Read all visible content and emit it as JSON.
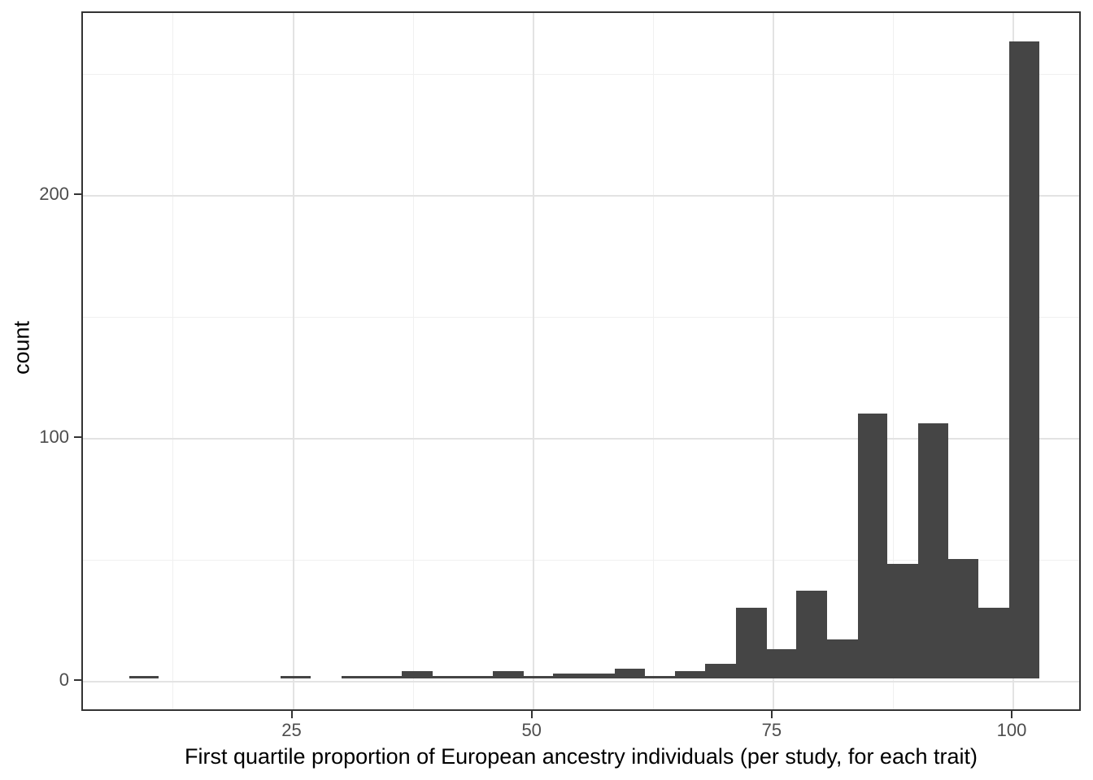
{
  "figure": {
    "background": "#ffffff"
  },
  "colors": {
    "bar_fill": "#454545",
    "major_grid": "#e3e3e3",
    "minor_grid": "#f0f0f0",
    "panel_border": "#333333",
    "tick_mark": "#333333",
    "tick_label": "#4d4d4d",
    "axis_title": "#000000"
  },
  "chart_data": {
    "type": "bar",
    "subtype": "histogram",
    "title": "",
    "xlabel": "First quartile proportion of European ancestry individuals (per study, for each trait)",
    "ylabel": "count",
    "x_ticks": [
      25,
      50,
      75,
      100
    ],
    "y_ticks": [
      0,
      100,
      200
    ],
    "x_minor_gridlines": [
      12.5,
      37.5,
      62.5,
      87.5
    ],
    "y_minor_gridlines": [
      50,
      150,
      250
    ],
    "xlim": [
      3.1,
      107.2
    ],
    "ylim": [
      -12.8,
      275.1
    ],
    "grid": true,
    "legend_position": "none",
    "bins": [
      {
        "start": 7.9,
        "end": 11.0,
        "count": 1
      },
      {
        "start": 11.0,
        "end": 14.2,
        "count": 0
      },
      {
        "start": 14.2,
        "end": 17.3,
        "count": 0
      },
      {
        "start": 17.3,
        "end": 20.5,
        "count": 0
      },
      {
        "start": 20.5,
        "end": 23.7,
        "count": 0
      },
      {
        "start": 23.7,
        "end": 26.8,
        "count": 1
      },
      {
        "start": 26.8,
        "end": 30.0,
        "count": 0
      },
      {
        "start": 30.0,
        "end": 33.2,
        "count": 1
      },
      {
        "start": 33.2,
        "end": 36.3,
        "count": 1
      },
      {
        "start": 36.3,
        "end": 39.5,
        "count": 3
      },
      {
        "start": 39.5,
        "end": 42.6,
        "count": 1
      },
      {
        "start": 42.6,
        "end": 45.8,
        "count": 1
      },
      {
        "start": 45.8,
        "end": 49.0,
        "count": 3
      },
      {
        "start": 49.0,
        "end": 52.1,
        "count": 1
      },
      {
        "start": 52.1,
        "end": 55.3,
        "count": 2
      },
      {
        "start": 55.3,
        "end": 58.5,
        "count": 2
      },
      {
        "start": 58.5,
        "end": 61.6,
        "count": 4
      },
      {
        "start": 61.6,
        "end": 64.8,
        "count": 1
      },
      {
        "start": 64.8,
        "end": 67.9,
        "count": 3
      },
      {
        "start": 67.9,
        "end": 71.1,
        "count": 6
      },
      {
        "start": 71.1,
        "end": 74.3,
        "count": 29
      },
      {
        "start": 74.3,
        "end": 77.4,
        "count": 12
      },
      {
        "start": 77.4,
        "end": 80.6,
        "count": 36
      },
      {
        "start": 80.6,
        "end": 83.8,
        "count": 16
      },
      {
        "start": 83.8,
        "end": 86.9,
        "count": 109
      },
      {
        "start": 86.9,
        "end": 90.1,
        "count": 47
      },
      {
        "start": 90.1,
        "end": 93.2,
        "count": 105
      },
      {
        "start": 93.2,
        "end": 96.4,
        "count": 49
      },
      {
        "start": 96.4,
        "end": 99.6,
        "count": 29
      },
      {
        "start": 99.6,
        "end": 102.7,
        "count": 262
      }
    ]
  }
}
